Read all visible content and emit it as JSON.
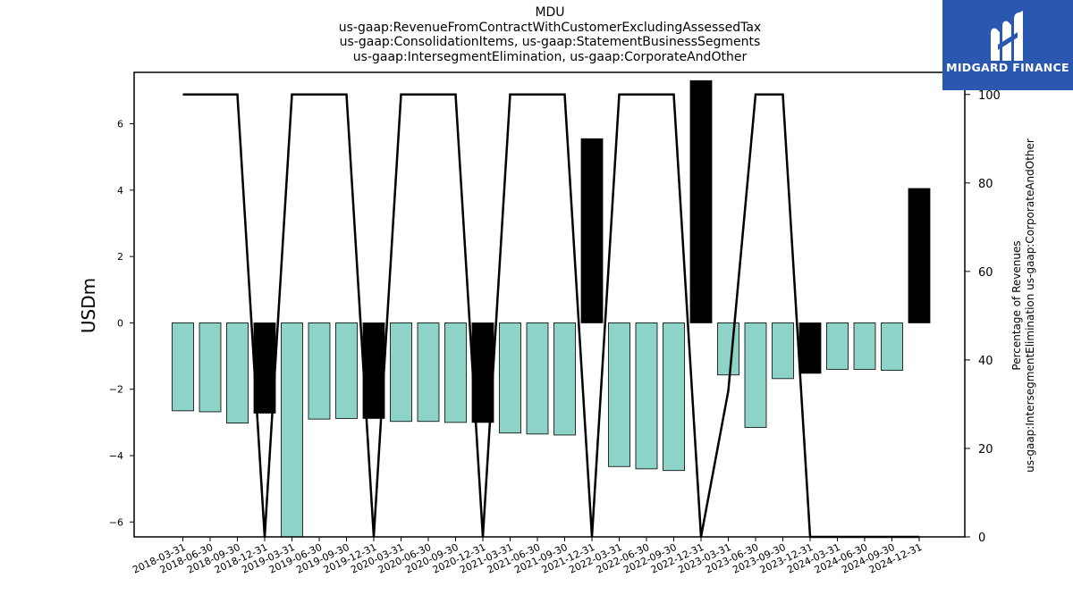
{
  "title": {
    "line1": "MDU",
    "line2": "us-gaap:RevenueFromContractWithCustomerExcludingAssessedTax",
    "line3": "us-gaap:ConsolidationItems, us-gaap:StatementBusinessSegments",
    "line4": "us-gaap:IntersegmentElimination, us-gaap:CorporateAndOther"
  },
  "brand": {
    "name": "MIDGARD FINANCE",
    "bg_color": "#2a57b0",
    "icon": "midgard-logo-icon"
  },
  "chart_data": {
    "type": "bar",
    "categories": [
      "2018-03-31",
      "2018-06-30",
      "2018-09-30",
      "2018-12-31",
      "2019-03-31",
      "2019-06-30",
      "2019-09-30",
      "2019-12-31",
      "2020-03-31",
      "2020-06-30",
      "2020-09-30",
      "2020-12-31",
      "2021-03-31",
      "2021-06-30",
      "2021-09-30",
      "2021-12-31",
      "2022-03-31",
      "2022-06-30",
      "2022-09-30",
      "2022-12-31",
      "2023-03-31",
      "2023-06-30",
      "2023-09-30",
      "2023-12-31",
      "2024-03-31",
      "2024-06-30",
      "2024-09-30",
      "2024-12-31"
    ],
    "series": [
      {
        "axis": "left",
        "type": "bar",
        "values": [
          -2.65,
          -2.68,
          -3.02,
          -2.72,
          -6.45,
          -2.9,
          -2.88,
          -2.88,
          -2.97,
          -2.97,
          -3.0,
          -3.0,
          -3.32,
          -3.35,
          -3.38,
          5.55,
          -4.33,
          -4.4,
          -4.45,
          7.3,
          -1.57,
          -3.15,
          -1.68,
          -1.52,
          -1.4,
          -1.4,
          -1.43,
          4.05
        ],
        "colors": [
          "#8dd3c7",
          "#8dd3c7",
          "#8dd3c7",
          "#000000",
          "#8dd3c7",
          "#8dd3c7",
          "#8dd3c7",
          "#000000",
          "#8dd3c7",
          "#8dd3c7",
          "#8dd3c7",
          "#000000",
          "#8dd3c7",
          "#8dd3c7",
          "#8dd3c7",
          "#000000",
          "#8dd3c7",
          "#8dd3c7",
          "#8dd3c7",
          "#000000",
          "#8dd3c7",
          "#8dd3c7",
          "#8dd3c7",
          "#000000",
          "#8dd3c7",
          "#8dd3c7",
          "#8dd3c7",
          "#000000"
        ]
      },
      {
        "axis": "right",
        "type": "line",
        "color": "#000000",
        "values": [
          100,
          100,
          100,
          0,
          100,
          100,
          100,
          0,
          100,
          100,
          100,
          0,
          100,
          100,
          100,
          0,
          100,
          100,
          100,
          0,
          33,
          100,
          100,
          0,
          0,
          0,
          0,
          0
        ]
      }
    ],
    "ylabel": "USDm",
    "y2label_line1": "Percentage of Revenues",
    "y2label_line2": "us-gaap:IntersegmentElimination us-gaap:CorporateAndOther",
    "ylim": [
      -6.45,
      7.55
    ],
    "y2lim": [
      0,
      105
    ],
    "yticks": [
      6,
      4,
      2,
      0,
      -2,
      -4,
      -6
    ],
    "ytick_labels": [
      "6",
      "4",
      "2",
      "0",
      "−2",
      "−4",
      "−6"
    ],
    "y2ticks": [
      0,
      20,
      40,
      60,
      80,
      100
    ],
    "y2tick_labels": [
      "0",
      "20",
      "40",
      "60",
      "80",
      "100"
    ],
    "grid": false,
    "legend": "none"
  }
}
